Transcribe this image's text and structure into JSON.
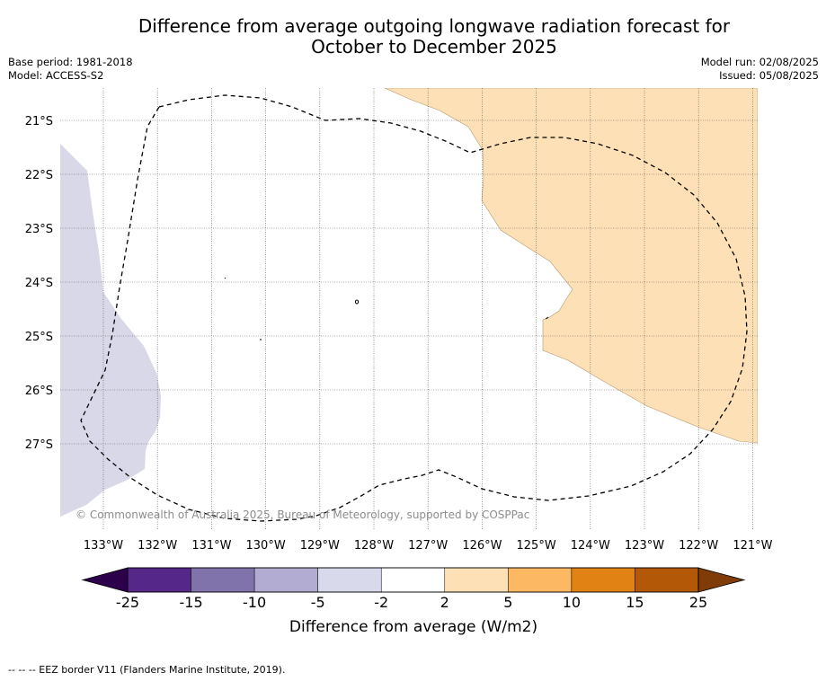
{
  "title": {
    "line1": "Difference from average outgoing longwave radiation forecast for",
    "line2": "October to December 2025"
  },
  "meta": {
    "base_period": "Base period: 1981-2018",
    "model": "Model: ACCESS-S2",
    "model_run": "Model run: 02/08/2025",
    "issued": "Issued: 05/08/2025"
  },
  "map": {
    "lat_labels": [
      "21°S",
      "22°S",
      "23°S",
      "24°S",
      "25°S",
      "26°S",
      "27°S"
    ],
    "lon_labels": [
      "133°W",
      "132°W",
      "131°W",
      "130°W",
      "129°W",
      "128°W",
      "127°W",
      "126°W",
      "125°W",
      "124°W",
      "123°W",
      "122°W",
      "121°W"
    ],
    "copyright": "© Commonwealth of Australia 2025, Bureau of Meteorology, supported by COSPPac",
    "colors": {
      "negative_shade": "#d8d8e9",
      "positive_shade": "#fde0b5"
    }
  },
  "colorbar": {
    "ticks": [
      "-25",
      "-15",
      "-10",
      "-5",
      "-2",
      "2",
      "5",
      "10",
      "15",
      "25"
    ],
    "colors": [
      "#2d004b",
      "#542788",
      "#8073ac",
      "#b2abd2",
      "#d8daeb",
      "#ffffff",
      "#fee0b6",
      "#fdb863",
      "#e08214",
      "#b35806",
      "#7f3b08"
    ],
    "label": "Difference from average (W/m2)"
  },
  "footnote": "--  --  -- EEZ border V11 (Flanders Marine Institute, 2019)."
}
